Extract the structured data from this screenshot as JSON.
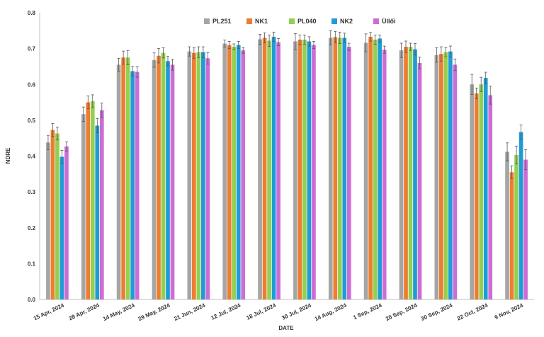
{
  "chart_data": {
    "type": "bar",
    "xlabel": "DATE",
    "ylabel": "NDRE",
    "ylim": [
      0,
      0.8
    ],
    "yticks": [
      "0.0",
      "0.1",
      "0.2",
      "0.3",
      "0.4",
      "0.5",
      "0.6",
      "0.7",
      "0.8"
    ],
    "grid": false,
    "error_bars": true,
    "legend_position": "top-center",
    "categories": [
      "15 Apr, 2024",
      "28 Apr, 2024",
      "14 May, 2024",
      "29 May, 2024",
      "21 Jun, 2024",
      "12 Jul, 2024",
      "18 Jul, 2024",
      "30 Jul, 2024",
      "14 Aug, 2024",
      "1 Sep, 2024",
      "20 Sep, 2024",
      "30 Sep, 2024",
      "22 Oct, 2024",
      "9 Nov, 2024"
    ],
    "series": [
      {
        "name": "PL251",
        "color": "#A5A5A5",
        "values": [
          0.438,
          0.517,
          0.655,
          0.668,
          0.692,
          0.714,
          0.726,
          0.72,
          0.73,
          0.716,
          0.695,
          0.682,
          0.6,
          0.412
        ],
        "errors": [
          0.02,
          0.02,
          0.018,
          0.02,
          0.013,
          0.01,
          0.014,
          0.022,
          0.02,
          0.025,
          0.02,
          0.02,
          0.028,
          0.025
        ]
      },
      {
        "name": "NK1",
        "color": "#ED7D31",
        "values": [
          0.473,
          0.55,
          0.675,
          0.68,
          0.688,
          0.71,
          0.73,
          0.725,
          0.732,
          0.733,
          0.705,
          0.685,
          0.575,
          0.355
        ],
        "errors": [
          0.018,
          0.018,
          0.018,
          0.02,
          0.015,
          0.01,
          0.014,
          0.013,
          0.016,
          0.012,
          0.016,
          0.02,
          0.015,
          0.018
        ]
      },
      {
        "name": "PL040",
        "color": "#92D050",
        "values": [
          0.463,
          0.553,
          0.675,
          0.688,
          0.69,
          0.705,
          0.722,
          0.725,
          0.73,
          0.725,
          0.705,
          0.69,
          0.6,
          0.403
        ],
        "errors": [
          0.018,
          0.018,
          0.02,
          0.014,
          0.015,
          0.008,
          0.016,
          0.013,
          0.016,
          0.013,
          0.01,
          0.013,
          0.02,
          0.025
        ]
      },
      {
        "name": "NK2",
        "color": "#1F9BD7",
        "values": [
          0.398,
          0.485,
          0.637,
          0.665,
          0.69,
          0.71,
          0.733,
          0.72,
          0.73,
          0.728,
          0.698,
          0.692,
          0.618,
          0.467
        ],
        "errors": [
          0.018,
          0.02,
          0.013,
          0.013,
          0.015,
          0.01,
          0.013,
          0.013,
          0.013,
          0.01,
          0.016,
          0.015,
          0.016,
          0.02
        ]
      },
      {
        "name": "Üllői",
        "color": "#CC6DD6",
        "values": [
          0.427,
          0.528,
          0.635,
          0.655,
          0.673,
          0.695,
          0.718,
          0.71,
          0.705,
          0.697,
          0.66,
          0.655,
          0.57,
          0.39
        ],
        "errors": [
          0.013,
          0.02,
          0.015,
          0.015,
          0.016,
          0.008,
          0.01,
          0.01,
          0.01,
          0.01,
          0.016,
          0.016,
          0.025,
          0.028
        ]
      }
    ]
  }
}
